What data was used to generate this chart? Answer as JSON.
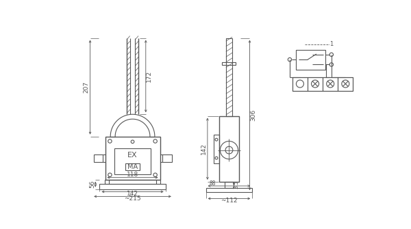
{
  "bg_color": "#ffffff",
  "line_color": "#555555",
  "lw": 0.8,
  "lw_thick": 1.0,
  "dim_color": "#555555",
  "font_size": 6.5
}
